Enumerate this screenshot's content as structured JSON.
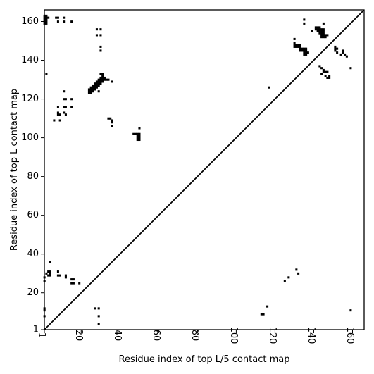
{
  "chart_data": {
    "type": "heatmap",
    "title": "",
    "xlabel": "Residue index of top L/5 contact map",
    "ylabel": "Residue index of top L contact map",
    "xlim": [
      1,
      166
    ],
    "ylim": [
      1,
      166
    ],
    "xticks": [
      1,
      20,
      40,
      60,
      80,
      100,
      120,
      140,
      160
    ],
    "yticks": [
      1,
      20,
      40,
      60,
      80,
      100,
      120,
      140,
      160
    ],
    "grid": false,
    "legend": "none",
    "diagonal_line": true,
    "cell_color": "#000000",
    "upper_contacts": [
      [
        1,
        159
      ],
      [
        1,
        160
      ],
      [
        1,
        161
      ],
      [
        1,
        162
      ],
      [
        1,
        163
      ],
      [
        2,
        159
      ],
      [
        2,
        160
      ],
      [
        2,
        161
      ],
      [
        2,
        162
      ],
      [
        2,
        163
      ],
      [
        3,
        162
      ],
      [
        7,
        162
      ],
      [
        8,
        160
      ],
      [
        8,
        162
      ],
      [
        11,
        160
      ],
      [
        11,
        162
      ],
      [
        15,
        160
      ],
      [
        2,
        133
      ],
      [
        28,
        156
      ],
      [
        30,
        156
      ],
      [
        28,
        153
      ],
      [
        30,
        153
      ],
      [
        30,
        147
      ],
      [
        30,
        145
      ],
      [
        24,
        123
      ],
      [
        24,
        124
      ],
      [
        24,
        125
      ],
      [
        25,
        123
      ],
      [
        25,
        124
      ],
      [
        25,
        125
      ],
      [
        25,
        126
      ],
      [
        26,
        124
      ],
      [
        26,
        125
      ],
      [
        26,
        126
      ],
      [
        26,
        127
      ],
      [
        27,
        125
      ],
      [
        27,
        126
      ],
      [
        27,
        127
      ],
      [
        27,
        128
      ],
      [
        28,
        126
      ],
      [
        28,
        127
      ],
      [
        28,
        128
      ],
      [
        28,
        129
      ],
      [
        29,
        124
      ],
      [
        29,
        127
      ],
      [
        29,
        128
      ],
      [
        29,
        129
      ],
      [
        29,
        130
      ],
      [
        30,
        128
      ],
      [
        30,
        129
      ],
      [
        30,
        130
      ],
      [
        30,
        131
      ],
      [
        30,
        133
      ],
      [
        31,
        129
      ],
      [
        31,
        130
      ],
      [
        31,
        131
      ],
      [
        31,
        132
      ],
      [
        31,
        133
      ],
      [
        32,
        130
      ],
      [
        32,
        131
      ],
      [
        33,
        130
      ],
      [
        34,
        130
      ],
      [
        36,
        129
      ],
      [
        11,
        124
      ],
      [
        11,
        120
      ],
      [
        12,
        120
      ],
      [
        11,
        116
      ],
      [
        12,
        116
      ],
      [
        15,
        120
      ],
      [
        15,
        116
      ],
      [
        8,
        116
      ],
      [
        8,
        113
      ],
      [
        8,
        112
      ],
      [
        9,
        112
      ],
      [
        11,
        113
      ],
      [
        12,
        112
      ],
      [
        6,
        109
      ],
      [
        9,
        109
      ],
      [
        34,
        110
      ],
      [
        35,
        110
      ],
      [
        36,
        109
      ],
      [
        36,
        108
      ],
      [
        36,
        106
      ],
      [
        47,
        102
      ],
      [
        48,
        102
      ],
      [
        49,
        102
      ],
      [
        49,
        101
      ],
      [
        49,
        100
      ],
      [
        49,
        99
      ],
      [
        50,
        102
      ],
      [
        50,
        101
      ],
      [
        50,
        100
      ],
      [
        50,
        99
      ],
      [
        50,
        105
      ],
      [
        130,
        151
      ],
      [
        130,
        149
      ],
      [
        130,
        148
      ],
      [
        130,
        147
      ],
      [
        131,
        148
      ],
      [
        131,
        147
      ],
      [
        132,
        148
      ],
      [
        132,
        147
      ],
      [
        133,
        148
      ],
      [
        133,
        147
      ],
      [
        133,
        146
      ],
      [
        133,
        145
      ],
      [
        134,
        146
      ],
      [
        134,
        145
      ],
      [
        135,
        146
      ],
      [
        135,
        145
      ],
      [
        135,
        144
      ],
      [
        135,
        143
      ],
      [
        136,
        146
      ],
      [
        136,
        145
      ],
      [
        136,
        144
      ],
      [
        136,
        143
      ],
      [
        137,
        144
      ],
      [
        135,
        159
      ],
      [
        135,
        161
      ],
      [
        139,
        155
      ],
      [
        141,
        157
      ],
      [
        141,
        156
      ],
      [
        142,
        157
      ],
      [
        142,
        156
      ],
      [
        142,
        155
      ],
      [
        143,
        157
      ],
      [
        143,
        156
      ],
      [
        143,
        155
      ],
      [
        143,
        154
      ],
      [
        144,
        156
      ],
      [
        144,
        155
      ],
      [
        144,
        154
      ],
      [
        144,
        153
      ],
      [
        144,
        152
      ],
      [
        145,
        159
      ],
      [
        145,
        156
      ],
      [
        145,
        155
      ],
      [
        145,
        154
      ],
      [
        145,
        153
      ],
      [
        145,
        152
      ],
      [
        146,
        153
      ],
      [
        146,
        152
      ],
      [
        147,
        153
      ],
      [
        143,
        137
      ],
      [
        144,
        136
      ],
      [
        144,
        133
      ],
      [
        145,
        135
      ],
      [
        145,
        134
      ],
      [
        146,
        134
      ],
      [
        146,
        132
      ],
      [
        147,
        134
      ],
      [
        147,
        131
      ],
      [
        148,
        132
      ],
      [
        148,
        131
      ],
      [
        151,
        147
      ],
      [
        151,
        146
      ],
      [
        151,
        145
      ],
      [
        152,
        146
      ],
      [
        152,
        144
      ],
      [
        154,
        143
      ],
      [
        155,
        144
      ],
      [
        155,
        145
      ],
      [
        156,
        143
      ],
      [
        157,
        142
      ],
      [
        159,
        136
      ]
    ],
    "lower_contacts": [
      [
        1,
        26
      ],
      [
        1,
        28
      ],
      [
        1,
        12
      ],
      [
        1,
        11
      ],
      [
        1,
        8
      ],
      [
        2,
        30
      ],
      [
        3,
        29
      ],
      [
        3,
        31
      ],
      [
        4,
        29
      ],
      [
        4,
        30
      ],
      [
        4,
        31
      ],
      [
        4,
        36
      ],
      [
        8,
        29
      ],
      [
        8,
        31
      ],
      [
        9,
        29
      ],
      [
        12,
        28
      ],
      [
        12,
        29
      ],
      [
        15,
        27
      ],
      [
        15,
        25
      ],
      [
        16,
        27
      ],
      [
        16,
        25
      ],
      [
        19,
        25
      ],
      [
        27,
        12
      ],
      [
        29,
        12
      ],
      [
        29,
        8
      ],
      [
        29,
        4
      ],
      [
        113,
        9
      ],
      [
        114,
        9
      ],
      [
        117,
        126
      ],
      [
        116,
        13
      ],
      [
        125,
        26
      ],
      [
        127,
        28
      ],
      [
        131,
        32
      ],
      [
        132,
        30
      ],
      [
        159,
        11
      ]
    ]
  }
}
